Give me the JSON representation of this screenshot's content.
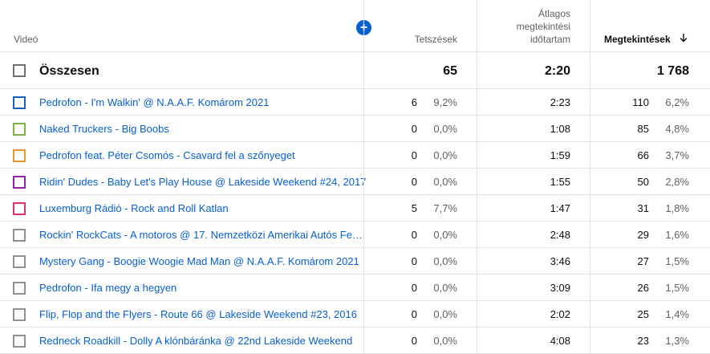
{
  "header": {
    "video_label": "Videó",
    "likes_label": "Tetszések",
    "avg_duration_label": [
      "Átlagos",
      "megtekintési",
      "időtartam"
    ],
    "views_label": "Megtekintések",
    "sort_icon": "arrow-down-icon",
    "add_icon": "plus-circle-icon"
  },
  "total": {
    "label": "Összesen",
    "likes": "65",
    "avg_duration": "2:20",
    "views": "1 768"
  },
  "rows": [
    {
      "title": "Pedrofon - I'm Walkin' @ N.A.A.F. Komárom 2021",
      "likes": "6",
      "likes_pct": "9,2%",
      "duration": "2:23",
      "views": "110",
      "views_pct": "6,2%",
      "color": "#1565c0"
    },
    {
      "title": "Naked Truckers - Big Boobs",
      "likes": "0",
      "likes_pct": "0,0%",
      "duration": "1:08",
      "views": "85",
      "views_pct": "4,8%",
      "color": "#7cb342"
    },
    {
      "title": "Pedrofon feat. Péter Csomós - Csavard fel a szőnyeget",
      "likes": "0",
      "likes_pct": "0,0%",
      "duration": "1:59",
      "views": "66",
      "views_pct": "3,7%",
      "color": "#e69a2e"
    },
    {
      "title": "Ridin' Dudes - Baby Let's Play House @ Lakeside Weekend #24, 2017",
      "likes": "0",
      "likes_pct": "0,0%",
      "duration": "1:55",
      "views": "50",
      "views_pct": "2,8%",
      "color": "#8e24aa"
    },
    {
      "title": "Luxemburg Rádió - Rock and Roll Katlan",
      "likes": "5",
      "likes_pct": "7,7%",
      "duration": "1:47",
      "views": "31",
      "views_pct": "1,8%",
      "color": "#d6336c"
    },
    {
      "title": "Rockin' RockCats - A motoros @ 17. Nemzetközi Amerikai Autós Fe…",
      "likes": "0",
      "likes_pct": "0,0%",
      "duration": "2:48",
      "views": "29",
      "views_pct": "1,6%",
      "color": "#909090"
    },
    {
      "title": "Mystery Gang - Boogie Woogie Mad Man @ N.A.A.F. Komárom 2021",
      "likes": "0",
      "likes_pct": "0,0%",
      "duration": "3:46",
      "views": "27",
      "views_pct": "1,5%",
      "color": "#909090"
    },
    {
      "title": "Pedrofon - Ifa megy a hegyen",
      "likes": "0",
      "likes_pct": "0,0%",
      "duration": "3:09",
      "views": "26",
      "views_pct": "1,5%",
      "color": "#909090"
    },
    {
      "title": "Flip, Flop and the Flyers - Route 66 @ Lakeside Weekend #23, 2016",
      "likes": "0",
      "likes_pct": "0,0%",
      "duration": "2:02",
      "views": "25",
      "views_pct": "1,4%",
      "color": "#909090"
    },
    {
      "title": "Redneck Roadkill - Dolly A klónbáránka @ 22nd Lakeside Weekend",
      "likes": "0",
      "likes_pct": "0,0%",
      "duration": "4:08",
      "views": "23",
      "views_pct": "1,3%",
      "color": "#909090"
    }
  ]
}
